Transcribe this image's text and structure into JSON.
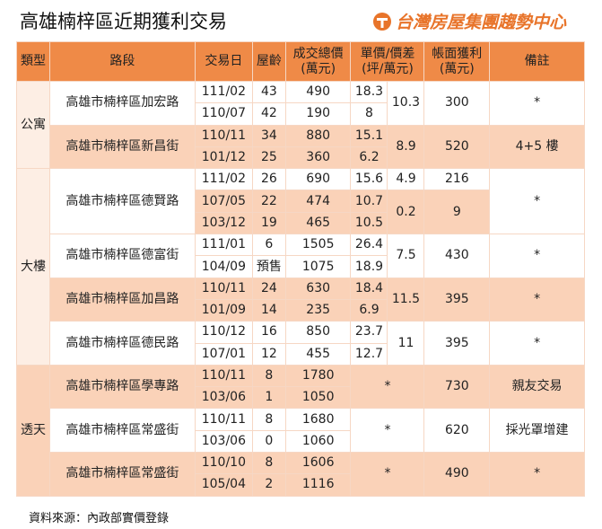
{
  "header": {
    "title": "高雄楠梓區近期獲利交易",
    "logo": "台灣房屋集團趨勢中心"
  },
  "table": {
    "header": [
      "類型",
      "路段",
      "交易日",
      "屋齡",
      "成交總價\n(萬元)",
      {
        "text": "單價/價差\n(坪/萬元)",
        "colspan": 2
      },
      "帳面獲利\n(萬元)",
      "備註"
    ],
    "rows": [
      [
        {
          "text": "公寓",
          "rowspan": 4
        },
        {
          "text": "高雄市楠梓區加宏路",
          "rowspan": 2
        },
        "111/02",
        "43",
        "490",
        "18.3",
        {
          "text": "10.3",
          "rowspan": 2
        },
        {
          "text": "300",
          "rowspan": 2
        },
        {
          "text": "*",
          "rowspan": 2
        }
      ],
      [
        "110/07",
        "42",
        "190",
        "8"
      ],
      [
        {
          "text": "高雄市楠梓區新昌街",
          "rowspan": 2
        },
        "110/11",
        "34",
        "880",
        "15.1",
        {
          "text": "8.9",
          "rowspan": 2
        },
        {
          "text": "520",
          "rowspan": 2
        },
        {
          "text": "4+5 樓",
          "rowspan": 2
        }
      ],
      [
        "101/12",
        "25",
        "360",
        "6.2"
      ],
      [
        {
          "text": "大樓",
          "rowspan": 9
        },
        {
          "text": "高雄市楠梓區德賢路",
          "rowspan": 3
        },
        "111/02",
        "26",
        "690",
        "15.6",
        "4.9",
        "216",
        {
          "text": "*",
          "rowspan": 3
        }
      ],
      [
        "107/05",
        "22",
        "474",
        "10.7",
        {
          "text": "0.2",
          "rowspan": 2
        },
        {
          "text": "9",
          "rowspan": 2
        }
      ],
      [
        "103/12",
        "19",
        "465",
        "10.5"
      ],
      [
        {
          "text": "高雄市楠梓區德富街",
          "rowspan": 2
        },
        "111/01",
        "6",
        "1505",
        "26.4",
        {
          "text": "7.5",
          "rowspan": 2
        },
        {
          "text": "430",
          "rowspan": 2
        },
        {
          "text": "*",
          "rowspan": 2
        }
      ],
      [
        "104/09",
        "預售",
        "1075",
        "18.9"
      ],
      [
        {
          "text": "高雄市楠梓區加昌路",
          "rowspan": 2
        },
        "110/11",
        "24",
        "630",
        "18.4",
        {
          "text": "11.5",
          "rowspan": 2
        },
        {
          "text": "395",
          "rowspan": 2
        },
        {
          "text": "*",
          "rowspan": 2
        }
      ],
      [
        "101/09",
        "14",
        "235",
        "6.9"
      ],
      [
        {
          "text": "高雄市楠梓區德民路",
          "rowspan": 2
        },
        "110/12",
        "16",
        "850",
        "23.7",
        {
          "text": "11",
          "rowspan": 2
        },
        {
          "text": "395",
          "rowspan": 2
        },
        {
          "text": "*",
          "rowspan": 2
        }
      ],
      [
        "107/01",
        "12",
        "455",
        "12.7"
      ],
      [
        {
          "text": "透天",
          "rowspan": 6
        },
        {
          "text": "高雄市楠梓區學專路",
          "rowspan": 2
        },
        "110/11",
        "8",
        "1780",
        {
          "text": "*",
          "rowspan": 2,
          "colspan": 2
        },
        {
          "text": "730",
          "rowspan": 2
        },
        {
          "text": "親友交易",
          "rowspan": 2
        }
      ],
      [
        "103/06",
        "1",
        "1050"
      ],
      [
        {
          "text": "高雄市楠梓區常盛街",
          "rowspan": 2
        },
        "110/11",
        "8",
        "1680",
        {
          "text": "*",
          "rowspan": 2,
          "colspan": 2
        },
        {
          "text": "620",
          "rowspan": 2
        },
        {
          "text": "採光罩增建",
          "rowspan": 2
        }
      ],
      [
        "103/06",
        "0",
        "1060"
      ],
      [
        {
          "text": "高雄市楠梓區常盛街",
          "rowspan": 2
        },
        "110/10",
        "8",
        "1606",
        {
          "text": "*",
          "rowspan": 2,
          "colspan": 2
        },
        {
          "text": "490",
          "rowspan": 2
        },
        {
          "text": "*",
          "rowspan": 2
        }
      ],
      [
        "105/04",
        "2",
        "1116"
      ]
    ]
  },
  "footer": {
    "source": "資料來源：內政部實價登錄"
  }
}
